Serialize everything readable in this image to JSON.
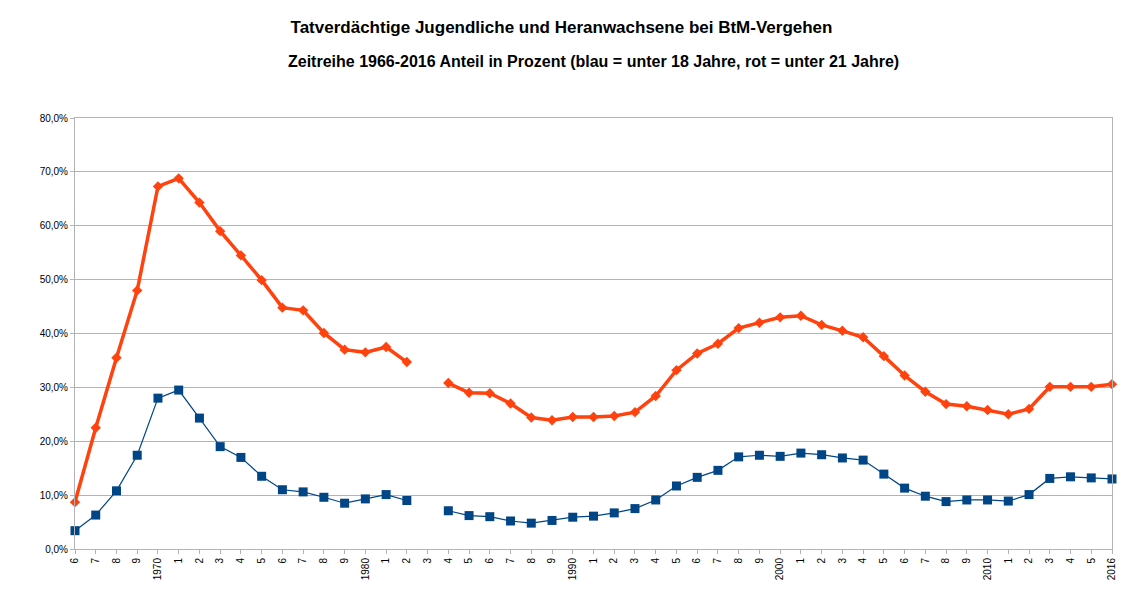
{
  "chart_data": {
    "type": "line",
    "title": "Tatverdächtige Jugendliche und Heranwachsene bei BtM-Vergehen",
    "subtitle": "Zeitreihe 1966-2016 Anteil in Prozent (blau = unter 18 Jahre, rot = unter 21 Jahre)",
    "categories": [
      "6",
      "7",
      "8",
      "9",
      "1970",
      "1",
      "2",
      "3",
      "4",
      "5",
      "6",
      "7",
      "8",
      "9",
      "1980",
      "1",
      "2",
      "3",
      "4",
      "5",
      "6",
      "7",
      "8",
      "9",
      "1990",
      "1",
      "2",
      "3",
      "4",
      "5",
      "6",
      "7",
      "8",
      "9",
      "2000",
      "1",
      "2",
      "3",
      "4",
      "5",
      "6",
      "7",
      "8",
      "9",
      "2010",
      "1",
      "2",
      "3",
      "4",
      "5",
      "2016"
    ],
    "series": [
      {
        "name": "unter 21 Jahre",
        "color": "#ff420e",
        "marker": "diamond",
        "line_style": "solid",
        "values": [
          8.7,
          22.5,
          35.5,
          48.0,
          67.3,
          68.8,
          64.3,
          59.0,
          54.5,
          49.9,
          44.8,
          44.3,
          40.1,
          37.0,
          36.5,
          37.5,
          34.7,
          null,
          30.8,
          29.0,
          28.9,
          27.0,
          24.4,
          23.9,
          24.5,
          24.5,
          24.7,
          25.4,
          28.4,
          33.2,
          36.3,
          38.1,
          41.0,
          42.0,
          43.0,
          43.3,
          41.6,
          40.5,
          39.3,
          35.8,
          32.2,
          29.2,
          26.9,
          26.5,
          25.8,
          25.0,
          26.0,
          30.1,
          30.1,
          30.1,
          30.6
        ]
      },
      {
        "name": "unter 18 Jahre",
        "color": "#004586",
        "marker": "square",
        "line_style": "solid",
        "values": [
          3.4,
          6.3,
          10.8,
          17.4,
          28.0,
          29.5,
          24.3,
          19.0,
          17.0,
          13.5,
          11.0,
          10.6,
          9.6,
          8.5,
          9.3,
          10.1,
          9.0,
          null,
          7.1,
          6.2,
          6.0,
          5.2,
          4.8,
          5.3,
          5.9,
          6.1,
          6.7,
          7.5,
          9.1,
          11.7,
          13.3,
          14.6,
          17.1,
          17.4,
          17.2,
          17.8,
          17.5,
          16.9,
          16.5,
          13.9,
          11.3,
          9.8,
          8.8,
          9.1,
          9.1,
          8.9,
          10.1,
          13.1,
          13.4,
          13.2,
          13.0
        ]
      }
    ],
    "ylim": [
      0,
      80
    ],
    "yticks": [
      {
        "value": 0,
        "label": "0,0%"
      },
      {
        "value": 10,
        "label": "10,0%"
      },
      {
        "value": 20,
        "label": "20,0%"
      },
      {
        "value": 30,
        "label": "30,0%"
      },
      {
        "value": 40,
        "label": "40,0%"
      },
      {
        "value": 50,
        "label": "50,0%"
      },
      {
        "value": 60,
        "label": "60,0%"
      },
      {
        "value": 70,
        "label": "70,0%"
      },
      {
        "value": 80,
        "label": "80,0%"
      }
    ],
    "grid": true
  }
}
